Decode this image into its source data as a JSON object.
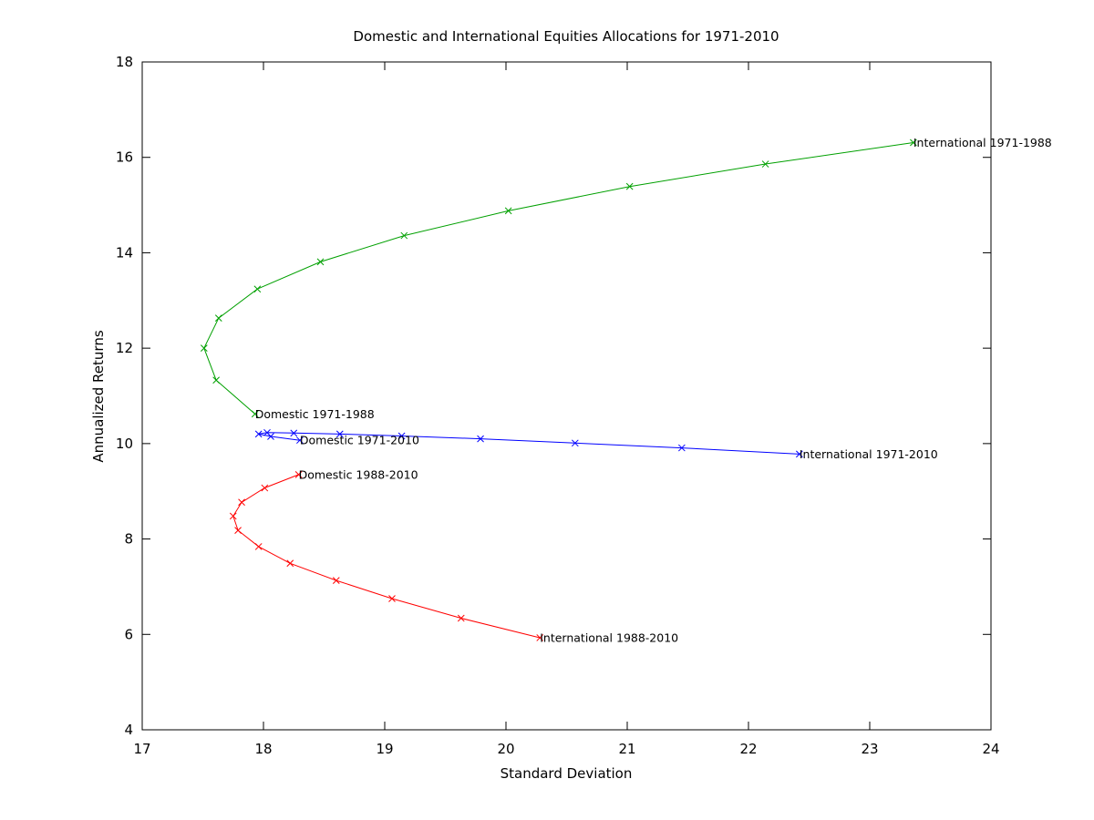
{
  "chart_data": {
    "type": "line",
    "title": "Domestic and International Equities Allocations for 1971-2010",
    "xlabel": "Standard Deviation",
    "ylabel": "Annualized Returns",
    "xlim": [
      17,
      24
    ],
    "ylim": [
      4,
      18
    ],
    "xticks": [
      17,
      18,
      19,
      20,
      21,
      22,
      23,
      24
    ],
    "yticks": [
      4,
      6,
      8,
      10,
      12,
      14,
      16,
      18
    ],
    "grid": false,
    "marker": "x",
    "series": [
      {
        "color": "#00a000",
        "points": [
          [
            17.93,
            10.62
          ],
          [
            17.61,
            11.33
          ],
          [
            17.51,
            12.0
          ],
          [
            17.63,
            12.63
          ],
          [
            17.95,
            13.24
          ],
          [
            18.47,
            13.81
          ],
          [
            19.16,
            14.36
          ],
          [
            20.02,
            14.88
          ],
          [
            21.02,
            15.39
          ],
          [
            22.14,
            15.86
          ],
          [
            23.36,
            16.31
          ]
        ]
      },
      {
        "color": "#0000ff",
        "points": [
          [
            18.3,
            10.07
          ],
          [
            18.06,
            10.15
          ],
          [
            17.96,
            10.2
          ],
          [
            18.03,
            10.23
          ],
          [
            18.25,
            10.22
          ],
          [
            18.63,
            10.2
          ],
          [
            19.14,
            10.16
          ],
          [
            19.79,
            10.1
          ],
          [
            20.57,
            10.01
          ],
          [
            21.45,
            9.91
          ],
          [
            22.42,
            9.78
          ]
        ]
      },
      {
        "color": "#ff0000",
        "points": [
          [
            18.29,
            9.35
          ],
          [
            18.01,
            9.07
          ],
          [
            17.82,
            8.77
          ],
          [
            17.75,
            8.48
          ],
          [
            17.79,
            8.18
          ],
          [
            17.96,
            7.84
          ],
          [
            18.22,
            7.49
          ],
          [
            18.6,
            7.13
          ],
          [
            19.06,
            6.75
          ],
          [
            19.63,
            6.34
          ],
          [
            20.28,
            5.93
          ]
        ]
      }
    ],
    "annotations": [
      {
        "text": "International 1971-1988",
        "x": 23.36,
        "y": 16.31
      },
      {
        "text": "Domestic 1971-1988",
        "x": 17.93,
        "y": 10.62
      },
      {
        "text": "Domestic 1971-2010",
        "x": 18.3,
        "y": 10.07
      },
      {
        "text": "International 1971-2010",
        "x": 22.42,
        "y": 9.78
      },
      {
        "text": "Domestic 1988-2010",
        "x": 18.29,
        "y": 9.35
      },
      {
        "text": "International 1988-2010",
        "x": 20.28,
        "y": 5.93
      }
    ]
  }
}
